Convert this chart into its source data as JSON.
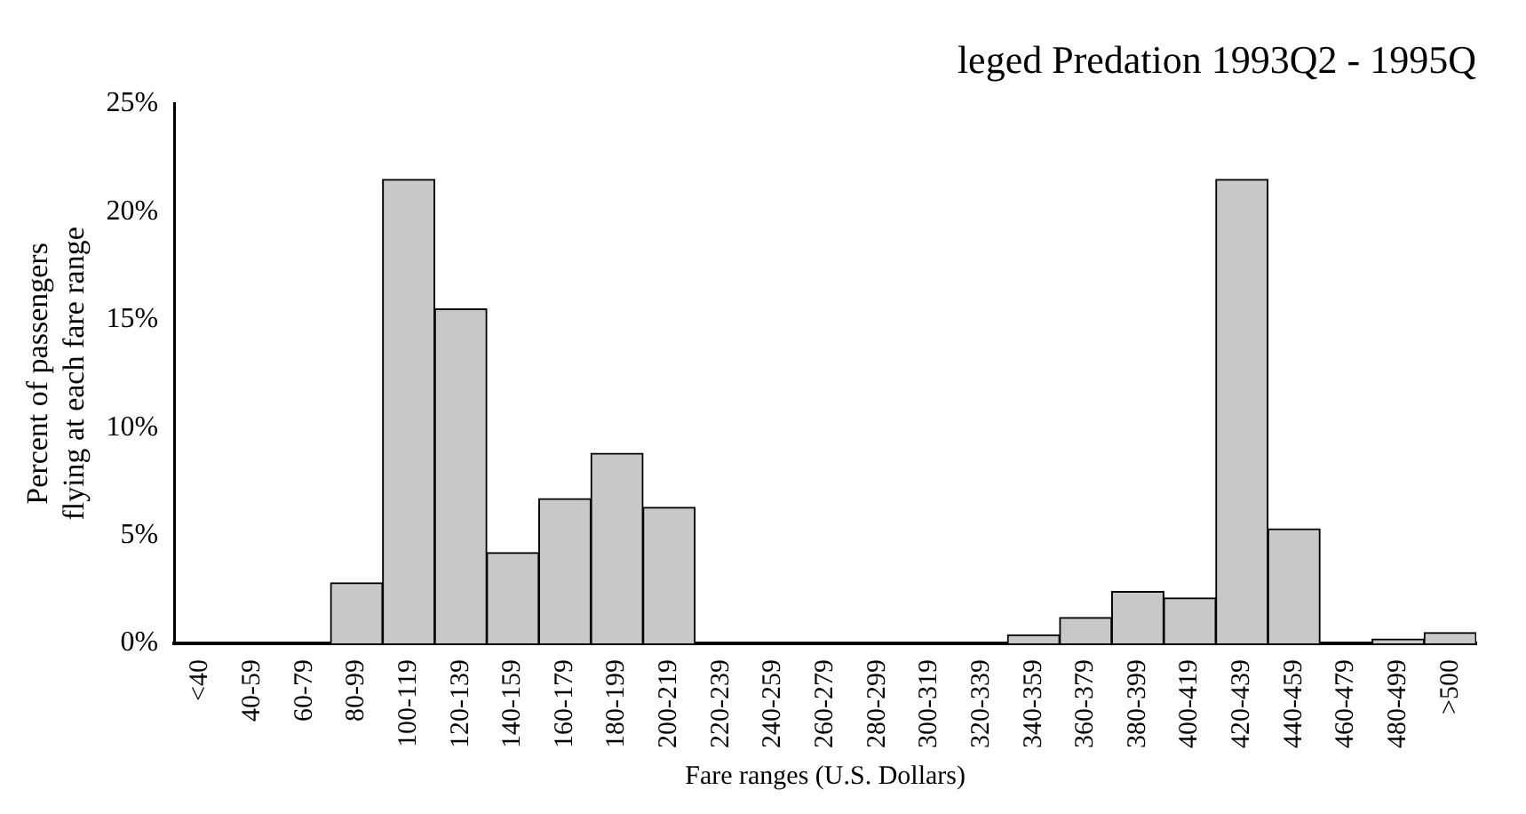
{
  "chart_data": {
    "type": "bar",
    "title": "leged Predation 1993Q2 - 1995Q",
    "xlabel": "Fare ranges (U.S. Dollars)",
    "ylabel": "Percent of passengers flying at each fare range",
    "categories": [
      "<40",
      "40-59",
      "60-79",
      "80-99",
      "100-119",
      "120-139",
      "140-159",
      "160-179",
      "180-199",
      "200-219",
      "220-239",
      "240-259",
      "260-279",
      "280-299",
      "300-319",
      "320-339",
      "340-359",
      "360-379",
      "380-399",
      "400-419",
      "420-439",
      "440-459",
      "460-479",
      "480-499",
      ">500"
    ],
    "values": [
      0,
      0,
      0,
      2.8,
      21.5,
      15.5,
      4.2,
      6.7,
      8.8,
      6.3,
      0,
      0,
      0,
      0,
      0,
      0,
      0.4,
      1.2,
      2.4,
      2.1,
      21.5,
      5.3,
      0,
      0.2,
      0.5
    ],
    "color": "#c8c8c8",
    "ylim": [
      0,
      25
    ],
    "yticks": [
      {
        "value": 0,
        "label": "0%"
      },
      {
        "value": 5,
        "label": "5%"
      },
      {
        "value": 10,
        "label": "10%"
      },
      {
        "value": 15,
        "label": "15%"
      },
      {
        "value": 20,
        "label": "20%"
      },
      {
        "value": 25,
        "label": "25%"
      }
    ],
    "grid": false,
    "legend": false
  }
}
